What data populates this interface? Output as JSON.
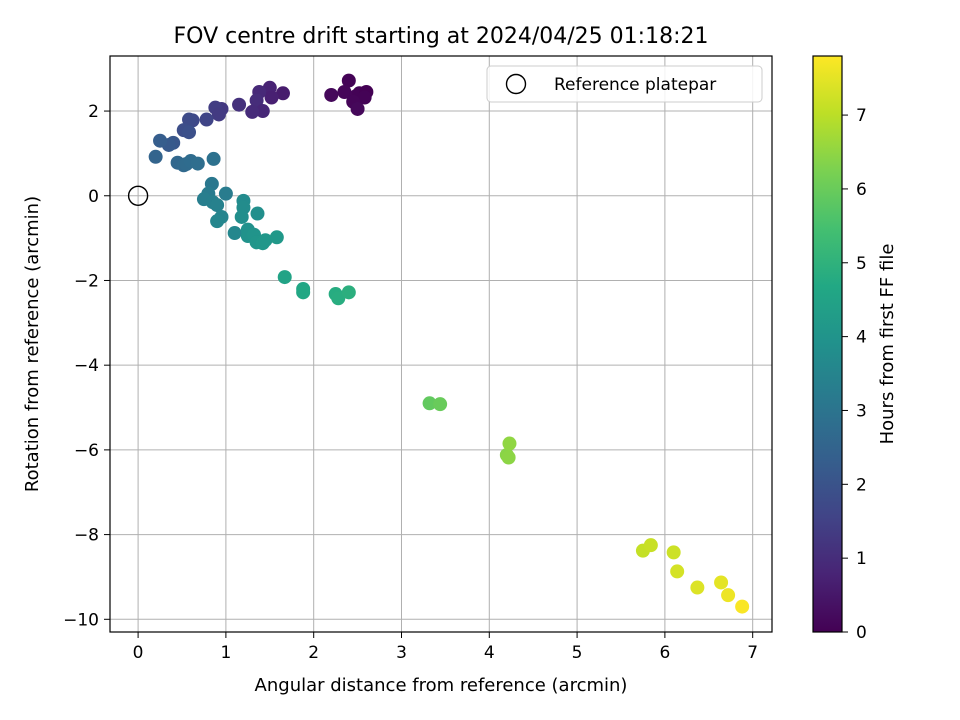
{
  "chart_data": {
    "type": "scatter",
    "title": "FOV centre drift starting at 2024/04/25 01:18:21",
    "xlabel": "Angular distance from reference (arcmin)",
    "ylabel": "Rotation from reference (arcmin)",
    "xlim": [
      -0.32,
      7.22
    ],
    "ylim": [
      -10.3,
      3.3
    ],
    "xticks": [
      0,
      1,
      2,
      3,
      4,
      5,
      6,
      7
    ],
    "yticks": [
      2,
      0,
      -2,
      -4,
      -6,
      -8,
      -10
    ],
    "xtick_labels": [
      "0",
      "1",
      "2",
      "3",
      "4",
      "5",
      "6",
      "7"
    ],
    "ytick_labels": [
      "2",
      "0",
      "−2",
      "−4",
      "−6",
      "−8",
      "−10"
    ],
    "grid": true,
    "legend": {
      "position": "top-right",
      "entries": [
        "Reference platepar"
      ]
    },
    "reference_point": {
      "x": 0,
      "y": 0,
      "label": "Reference platepar"
    },
    "colorbar": {
      "label": "Hours from first FF file",
      "colormap": "viridis",
      "range": [
        0,
        7.8
      ],
      "ticks": [
        0,
        1,
        2,
        3,
        4,
        5,
        6,
        7
      ],
      "tick_labels": [
        "0",
        "1",
        "2",
        "3",
        "4",
        "5",
        "6",
        "7"
      ]
    },
    "points": [
      {
        "x": 2.4,
        "y": 2.72,
        "c": 0.05
      },
      {
        "x": 2.35,
        "y": 2.45,
        "c": 0.1
      },
      {
        "x": 2.2,
        "y": 2.38,
        "c": 0.15
      },
      {
        "x": 2.48,
        "y": 2.35,
        "c": 0.1
      },
      {
        "x": 2.52,
        "y": 2.42,
        "c": 0.05
      },
      {
        "x": 2.6,
        "y": 2.45,
        "c": 0.0
      },
      {
        "x": 2.58,
        "y": 2.32,
        "c": 0.05
      },
      {
        "x": 2.45,
        "y": 2.22,
        "c": 0.1
      },
      {
        "x": 2.5,
        "y": 2.05,
        "c": 0.15
      },
      {
        "x": 1.65,
        "y": 2.42,
        "c": 0.6
      },
      {
        "x": 1.5,
        "y": 2.55,
        "c": 0.75
      },
      {
        "x": 1.52,
        "y": 2.32,
        "c": 0.7
      },
      {
        "x": 1.38,
        "y": 2.45,
        "c": 0.9
      },
      {
        "x": 1.35,
        "y": 2.25,
        "c": 1.0
      },
      {
        "x": 1.42,
        "y": 2.0,
        "c": 0.85
      },
      {
        "x": 1.3,
        "y": 1.98,
        "c": 0.95
      },
      {
        "x": 1.15,
        "y": 2.15,
        "c": 1.1
      },
      {
        "x": 0.95,
        "y": 2.05,
        "c": 1.3
      },
      {
        "x": 0.88,
        "y": 2.08,
        "c": 1.4
      },
      {
        "x": 0.92,
        "y": 1.92,
        "c": 1.35
      },
      {
        "x": 0.78,
        "y": 1.8,
        "c": 1.6
      },
      {
        "x": 0.62,
        "y": 1.78,
        "c": 1.7
      },
      {
        "x": 0.58,
        "y": 1.8,
        "c": 1.75
      },
      {
        "x": 0.52,
        "y": 1.55,
        "c": 1.85
      },
      {
        "x": 0.58,
        "y": 1.5,
        "c": 1.9
      },
      {
        "x": 0.4,
        "y": 1.25,
        "c": 2.1
      },
      {
        "x": 0.35,
        "y": 1.2,
        "c": 2.2
      },
      {
        "x": 0.25,
        "y": 1.3,
        "c": 2.3
      },
      {
        "x": 0.2,
        "y": 0.92,
        "c": 2.5
      },
      {
        "x": 0.45,
        "y": 0.78,
        "c": 2.6
      },
      {
        "x": 0.52,
        "y": 0.72,
        "c": 2.65
      },
      {
        "x": 0.55,
        "y": 0.75,
        "c": 2.7
      },
      {
        "x": 0.6,
        "y": 0.82,
        "c": 2.75
      },
      {
        "x": 0.68,
        "y": 0.76,
        "c": 2.8
      },
      {
        "x": 0.86,
        "y": 0.87,
        "c": 2.9
      },
      {
        "x": 0.84,
        "y": 0.28,
        "c": 3.1
      },
      {
        "x": 0.8,
        "y": 0.05,
        "c": 3.2
      },
      {
        "x": 1.0,
        "y": 0.05,
        "c": 3.25
      },
      {
        "x": 0.75,
        "y": -0.08,
        "c": 3.3
      },
      {
        "x": 0.85,
        "y": -0.15,
        "c": 3.35
      },
      {
        "x": 0.9,
        "y": -0.22,
        "c": 3.4
      },
      {
        "x": 0.95,
        "y": -0.5,
        "c": 3.5
      },
      {
        "x": 0.9,
        "y": -0.6,
        "c": 3.55
      },
      {
        "x": 1.1,
        "y": -0.88,
        "c": 3.6
      },
      {
        "x": 1.2,
        "y": -0.12,
        "c": 3.7
      },
      {
        "x": 1.2,
        "y": -0.28,
        "c": 3.75
      },
      {
        "x": 1.18,
        "y": -0.5,
        "c": 3.8
      },
      {
        "x": 1.36,
        "y": -0.42,
        "c": 3.85
      },
      {
        "x": 1.25,
        "y": -0.8,
        "c": 3.9
      },
      {
        "x": 1.25,
        "y": -0.95,
        "c": 3.95
      },
      {
        "x": 1.32,
        "y": -0.92,
        "c": 4.0
      },
      {
        "x": 1.35,
        "y": -1.1,
        "c": 4.05
      },
      {
        "x": 1.42,
        "y": -1.12,
        "c": 4.1
      },
      {
        "x": 1.45,
        "y": -1.05,
        "c": 4.1
      },
      {
        "x": 1.58,
        "y": -0.98,
        "c": 4.15
      },
      {
        "x": 1.67,
        "y": -1.92,
        "c": 4.5
      },
      {
        "x": 1.88,
        "y": -2.2,
        "c": 4.6
      },
      {
        "x": 1.88,
        "y": -2.28,
        "c": 4.65
      },
      {
        "x": 2.25,
        "y": -2.32,
        "c": 4.8
      },
      {
        "x": 2.28,
        "y": -2.42,
        "c": 4.85
      },
      {
        "x": 2.4,
        "y": -2.28,
        "c": 4.9
      },
      {
        "x": 3.32,
        "y": -4.9,
        "c": 5.9
      },
      {
        "x": 3.44,
        "y": -4.92,
        "c": 6.0
      },
      {
        "x": 4.2,
        "y": -6.12,
        "c": 6.4
      },
      {
        "x": 4.22,
        "y": -6.18,
        "c": 6.45
      },
      {
        "x": 4.23,
        "y": -5.85,
        "c": 6.5
      },
      {
        "x": 5.75,
        "y": -8.38,
        "c": 7.1
      },
      {
        "x": 5.84,
        "y": -8.25,
        "c": 7.15
      },
      {
        "x": 6.1,
        "y": -8.42,
        "c": 7.2
      },
      {
        "x": 6.14,
        "y": -8.87,
        "c": 7.3
      },
      {
        "x": 6.37,
        "y": -9.25,
        "c": 7.4
      },
      {
        "x": 6.64,
        "y": -9.13,
        "c": 7.5
      },
      {
        "x": 6.72,
        "y": -9.43,
        "c": 7.6
      },
      {
        "x": 6.88,
        "y": -9.7,
        "c": 7.75
      }
    ]
  }
}
